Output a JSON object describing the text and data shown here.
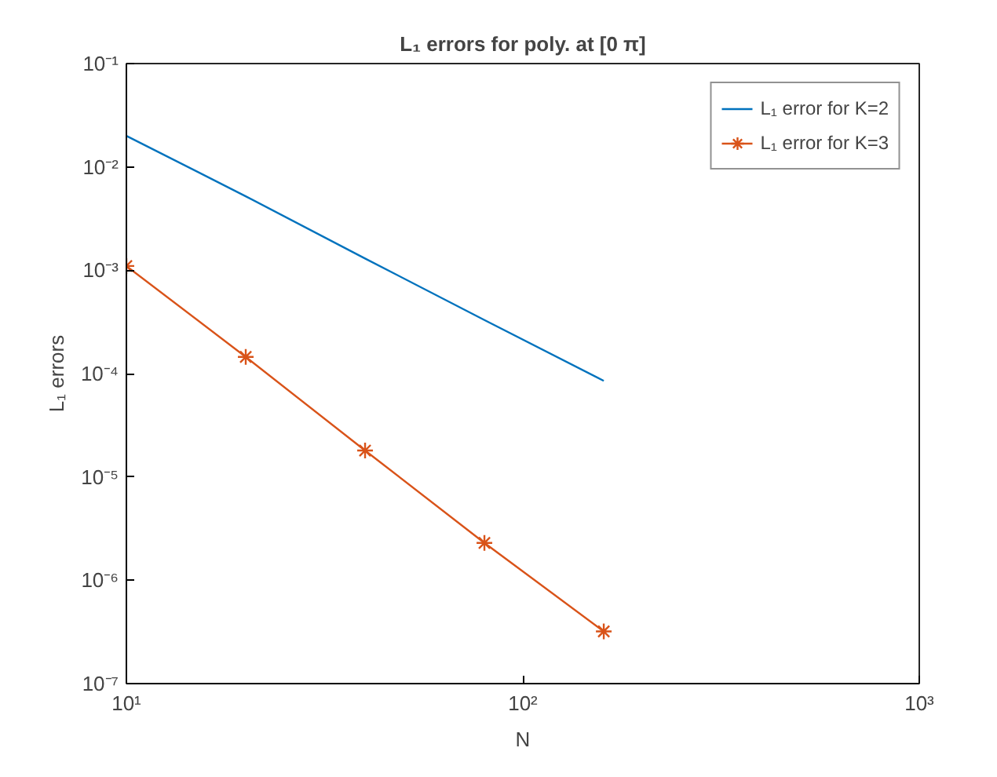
{
  "chart_data": {
    "type": "line",
    "title": "L₁ errors for poly. at [0 π]",
    "xlabel": "N",
    "ylabel": "L₁ errors",
    "log": "xy",
    "x": [
      10,
      20,
      40,
      80,
      160
    ],
    "series": [
      {
        "name": "L₁ error for K=2",
        "color": "#0072bd",
        "values": [
          0.02,
          0.0052,
          0.0013,
          0.00033,
          8.5e-05
        ],
        "marker": "none"
      },
      {
        "name": "L₁ error for K=3",
        "color": "#d95319",
        "values": [
          0.0011,
          0.000145,
          1.8e-05,
          2.3e-06,
          3.2e-07
        ],
        "marker": "cross"
      }
    ],
    "xlim": [
      10,
      1000
    ],
    "ylim": [
      1e-07,
      0.1
    ],
    "xticks": [
      {
        "value": 10,
        "label": "10¹"
      },
      {
        "value": 100,
        "label": "10²"
      },
      {
        "value": 1000,
        "label": "10³"
      }
    ],
    "yticks": [
      {
        "value": 1e-07,
        "label": "10⁻⁷"
      },
      {
        "value": 1e-06,
        "label": "10⁻⁶"
      },
      {
        "value": 1e-05,
        "label": "10⁻⁵"
      },
      {
        "value": 0.0001,
        "label": "10⁻⁴"
      },
      {
        "value": 0.001,
        "label": "10⁻³"
      },
      {
        "value": 0.01,
        "label": "10⁻²"
      },
      {
        "value": 0.1,
        "label": "10⁻¹"
      }
    ],
    "grid": false,
    "legend": "top right",
    "line_style": "solid"
  }
}
